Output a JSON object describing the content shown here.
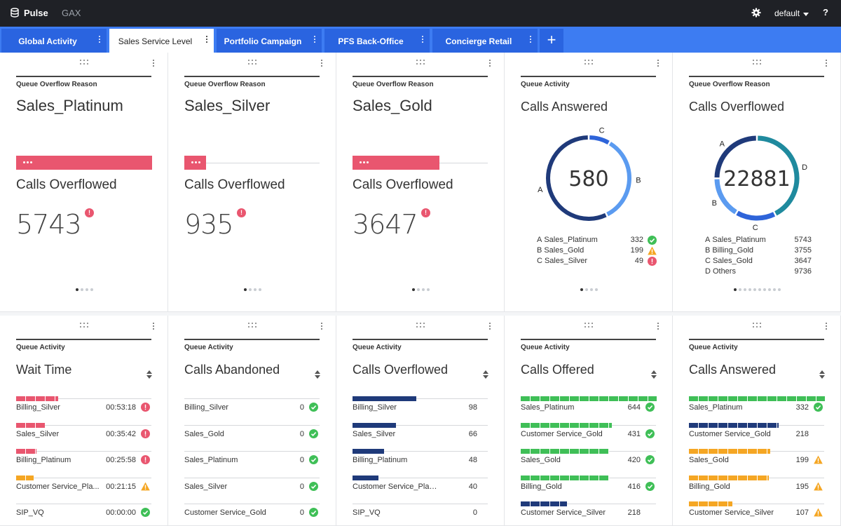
{
  "header": {
    "app_title": "Pulse",
    "sub_title": "GAX",
    "user_label": "default",
    "help_label": "?"
  },
  "tabs": [
    {
      "label": "Global Activity",
      "active": false
    },
    {
      "label": "Sales Service Level",
      "active": true
    },
    {
      "label": "Portfolio Campaign",
      "active": false
    },
    {
      "label": "PFS Back-Office",
      "active": false
    },
    {
      "label": "Concierge Retail",
      "active": false
    }
  ],
  "add_tab_label": "+",
  "colors": {
    "red": "#e9566f",
    "green": "#3fbf57",
    "orange": "#f5a623",
    "navy": "#1f3a7a",
    "blue": "#5b9bf0",
    "mid_blue": "#2e64d9",
    "teal": "#1f8a9e"
  },
  "row1": [
    {
      "category": "Queue Overflow Reason",
      "title": "Sales_Platinum",
      "subtitle": "Calls Overflowed",
      "value": "5743",
      "alert": "!",
      "bar_fraction": 1.0,
      "pager": {
        "count": 4,
        "active": 0
      }
    },
    {
      "category": "Queue Overflow Reason",
      "title": "Sales_Silver",
      "subtitle": "Calls Overflowed",
      "value": "935",
      "alert": "!",
      "bar_fraction": 0.16,
      "pager": {
        "count": 4,
        "active": 0
      }
    },
    {
      "category": "Queue Overflow Reason",
      "title": "Sales_Gold",
      "subtitle": "Calls Overflowed",
      "value": "3647",
      "alert": "!",
      "bar_fraction": 0.64,
      "pager": {
        "count": 4,
        "active": 0
      }
    },
    {
      "category": "Queue Activity",
      "title": "Calls Answered",
      "total": "580",
      "pager": {
        "count": 4,
        "active": 0
      },
      "slices": [
        {
          "key": "A",
          "name": "Sales_Platinum",
          "value": 332,
          "display": "332",
          "status": "ok",
          "color": "#1f3a7a"
        },
        {
          "key": "B",
          "name": "Sales_Gold",
          "value": 199,
          "display": "199",
          "status": "warn",
          "color": "#5b9bf0"
        },
        {
          "key": "C",
          "name": "Sales_Silver",
          "value": 49,
          "display": "49",
          "status": "alert",
          "color": "#2e64d9"
        }
      ]
    },
    {
      "category": "Queue Overflow Reason",
      "title": "Calls Overflowed",
      "total": "22881",
      "pager": {
        "count": 10,
        "active": 0
      },
      "slices": [
        {
          "key": "A",
          "name": "Sales_Platinum",
          "value": 5743,
          "display": "5743",
          "color": "#1f3a7a"
        },
        {
          "key": "B",
          "name": "Billing_Gold",
          "value": 3755,
          "display": "3755",
          "color": "#5b9bf0"
        },
        {
          "key": "C",
          "name": "Sales_Gold",
          "value": 3647,
          "display": "3647",
          "color": "#2e64d9"
        },
        {
          "key": "D",
          "name": "Others",
          "value": 9736,
          "display": "9736",
          "color": "#1f8a9e"
        }
      ]
    }
  ],
  "row2": [
    {
      "category": "Queue Activity",
      "title": "Wait Time",
      "rows": [
        {
          "name": "Billing_Silver",
          "value": "00:53:18",
          "status": "alert",
          "fraction": 0.31,
          "color": "#e9566f",
          "segmented": true
        },
        {
          "name": "Sales_Silver",
          "value": "00:35:42",
          "status": "alert",
          "fraction": 0.21,
          "color": "#e9566f",
          "segmented": true
        },
        {
          "name": "Billing_Platinum",
          "value": "00:25:58",
          "status": "alert",
          "fraction": 0.15,
          "color": "#e9566f",
          "segmented": true
        },
        {
          "name": "Customer Service_Pla...",
          "value": "00:21:15",
          "status": "warn",
          "fraction": 0.13,
          "color": "#f5a623",
          "segmented": true
        },
        {
          "name": "SIP_VQ",
          "value": "00:00:00",
          "status": "ok",
          "fraction": 0,
          "color": "#3fbf57",
          "segmented": false
        }
      ]
    },
    {
      "category": "Queue Activity",
      "title": "Calls Abandoned",
      "rows": [
        {
          "name": "Billing_Silver",
          "value": "0",
          "status": "ok",
          "fraction": 0,
          "color": "#3fbf57",
          "segmented": false
        },
        {
          "name": "Sales_Gold",
          "value": "0",
          "status": "ok",
          "fraction": 0,
          "color": "#3fbf57",
          "segmented": false
        },
        {
          "name": "Sales_Platinum",
          "value": "0",
          "status": "ok",
          "fraction": 0,
          "color": "#3fbf57",
          "segmented": false
        },
        {
          "name": "Sales_Silver",
          "value": "0",
          "status": "ok",
          "fraction": 0,
          "color": "#3fbf57",
          "segmented": false
        },
        {
          "name": "Customer Service_Gold",
          "value": "0",
          "status": "ok",
          "fraction": 0,
          "color": "#3fbf57",
          "segmented": false
        }
      ]
    },
    {
      "category": "Queue Activity",
      "title": "Calls Overflowed",
      "rows": [
        {
          "name": "Billing_Silver",
          "value": "98",
          "status": "none",
          "fraction": 0.47,
          "color": "#1f3a7a",
          "segmented": false
        },
        {
          "name": "Sales_Silver",
          "value": "66",
          "status": "none",
          "fraction": 0.32,
          "color": "#1f3a7a",
          "segmented": false
        },
        {
          "name": "Billing_Platinum",
          "value": "48",
          "status": "none",
          "fraction": 0.23,
          "color": "#1f3a7a",
          "segmented": false
        },
        {
          "name": "Customer Service_Platinum",
          "value": "40",
          "status": "none",
          "fraction": 0.19,
          "color": "#1f3a7a",
          "segmented": false
        },
        {
          "name": "SIP_VQ",
          "value": "0",
          "status": "none",
          "fraction": 0,
          "color": "#1f3a7a",
          "segmented": false
        }
      ]
    },
    {
      "category": "Queue Activity",
      "title": "Calls Offered",
      "rows": [
        {
          "name": "Sales_Platinum",
          "value": "644",
          "status": "ok",
          "fraction": 1.0,
          "color": "#3fbf57",
          "segmented": true
        },
        {
          "name": "Customer Service_Gold",
          "value": "431",
          "status": "ok",
          "fraction": 0.67,
          "color": "#3fbf57",
          "segmented": true
        },
        {
          "name": "Sales_Gold",
          "value": "420",
          "status": "ok",
          "fraction": 0.65,
          "color": "#3fbf57",
          "segmented": true
        },
        {
          "name": "Billing_Gold",
          "value": "416",
          "status": "ok",
          "fraction": 0.65,
          "color": "#3fbf57",
          "segmented": true
        },
        {
          "name": "Customer Service_Silver",
          "value": "218",
          "status": "none",
          "fraction": 0.34,
          "color": "#1f3a7a",
          "segmented": true
        }
      ]
    },
    {
      "category": "Queue Activity",
      "title": "Calls Answered",
      "rows": [
        {
          "name": "Sales_Platinum",
          "value": "332",
          "status": "ok",
          "fraction": 1.0,
          "color": "#3fbf57",
          "segmented": true
        },
        {
          "name": "Customer Service_Gold",
          "value": "218",
          "status": "none",
          "fraction": 0.66,
          "color": "#1f3a7a",
          "segmented": true
        },
        {
          "name": "Sales_Gold",
          "value": "199",
          "status": "warn",
          "fraction": 0.6,
          "color": "#f5a623",
          "segmented": true
        },
        {
          "name": "Billing_Gold",
          "value": "195",
          "status": "warn",
          "fraction": 0.59,
          "color": "#f5a623",
          "segmented": true
        },
        {
          "name": "Customer Service_Silver",
          "value": "107",
          "status": "warn",
          "fraction": 0.32,
          "color": "#f5a623",
          "segmented": true
        }
      ]
    }
  ]
}
